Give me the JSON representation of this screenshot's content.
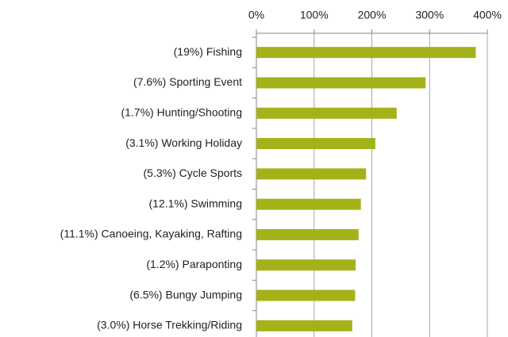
{
  "chart_data": {
    "type": "bar",
    "orientation": "horizontal",
    "categories": [
      "(19%) Fishing",
      "(7.6%) Sporting Event",
      "(1.7%) Hunting/Shooting",
      "(3.1%) Working Holiday",
      "(5.3%) Cycle Sports",
      "(12.1%) Swimming",
      "(11.1%) Canoeing, Kayaking, Rafting",
      "(1.2%) Paraponting",
      "(6.5%) Bungy Jumping",
      "(3.0%) Horse Trekking/Riding"
    ],
    "values": [
      380,
      293,
      243,
      206,
      190,
      181,
      177,
      172,
      171,
      166
    ],
    "color": "#a4b21a",
    "xlim": [
      0,
      400
    ],
    "xticks": [
      {
        "value": 0,
        "label": "0%"
      },
      {
        "value": 100,
        "label": "100%"
      },
      {
        "value": 200,
        "label": "200%"
      },
      {
        "value": 300,
        "label": "300%"
      },
      {
        "value": 400,
        "label": "400%"
      }
    ],
    "grid": true
  }
}
